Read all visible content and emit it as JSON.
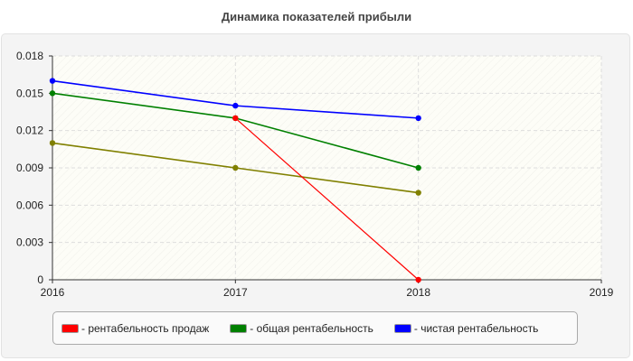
{
  "chart_data": {
    "type": "line",
    "title": "Динамика показателей прибыли",
    "x": [
      2016,
      2017,
      2018
    ],
    "xticks": [
      "2016",
      "2017",
      "2018",
      "2019"
    ],
    "xlim": [
      2016,
      2019
    ],
    "ylim": [
      0,
      0.018
    ],
    "yticks": [
      "0",
      "0.003",
      "0.006",
      "0.009",
      "0.012",
      "0.015",
      "0.018"
    ],
    "grid": true,
    "legend_position": "bottom",
    "series": [
      {
        "name": "- рентабельность продаж",
        "color": "#ff0000",
        "values": [
          null,
          0.013,
          0
        ]
      },
      {
        "name": "- общая рентабельность",
        "color": "#008000",
        "values": [
          0.015,
          0.013,
          0.009
        ]
      },
      {
        "name": "- чистая рентабельность",
        "color": "#0000ff",
        "values": [
          0.016,
          0.014,
          0.013
        ]
      },
      {
        "color": "#808000",
        "values": [
          0.011,
          0.009,
          0.007
        ]
      }
    ]
  }
}
